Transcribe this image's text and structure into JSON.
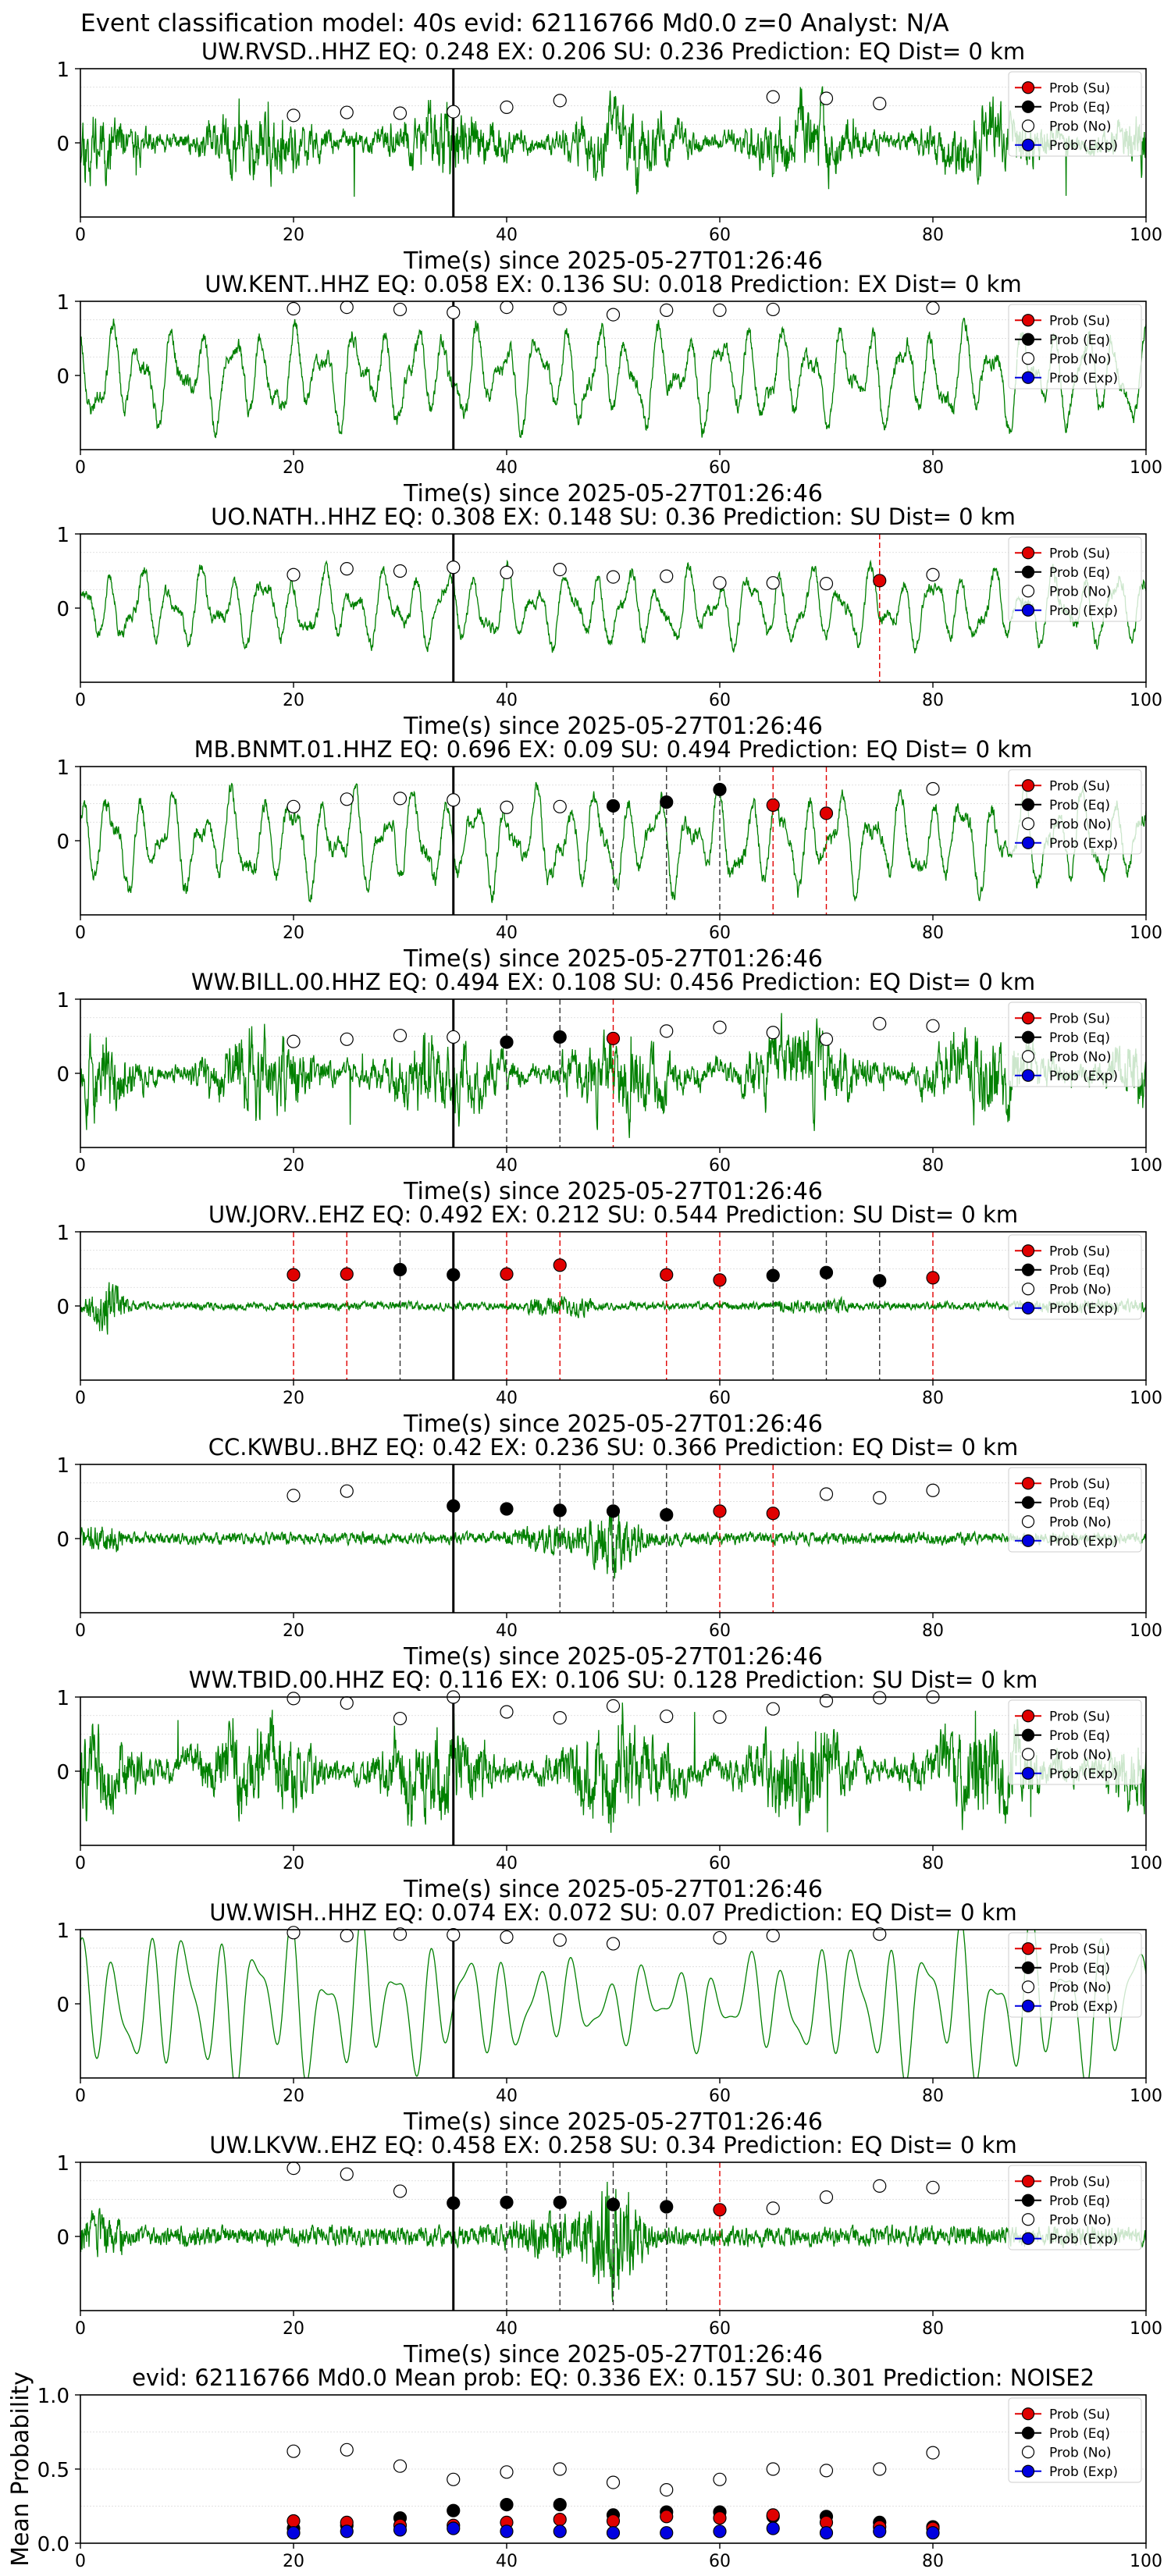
{
  "figure": {
    "suptitle": "Event classification model: 40s evid: 62116766 Md0.0 z=0 Analyst: N/A"
  },
  "legend": {
    "entries": [
      {
        "label": "Prob (Su)",
        "color": "#e00000"
      },
      {
        "label": "Prob (Eq)",
        "color": "#000000"
      },
      {
        "label": "Prob (No)",
        "color": "#ffffff"
      },
      {
        "label": "Prob (Exp)",
        "color": "#0000e0"
      }
    ]
  },
  "colors": {
    "waveform": "#008000",
    "su": "#e00000",
    "eq": "#000000",
    "no": "#ffffff",
    "exp": "#0000e0"
  },
  "chart_data": [
    {
      "type": "line",
      "title": "UW.RVSD..HHZ   EQ: 0.248  EX: 0.206  SU: 0.236   Prediction: EQ    Dist= 0 km",
      "xlabel": "Time(s) since 2025-05-27T01:26:46",
      "xlim": [
        0,
        100
      ],
      "xticks": [
        0,
        20,
        40,
        60,
        80,
        100
      ],
      "yticks": [
        0,
        1
      ],
      "ylim": [
        -1,
        1
      ],
      "event_line": 35,
      "waveform": {
        "style": "noisy",
        "amplitude": 0.4,
        "seed": 11
      },
      "prob_no": [
        [
          20,
          0.37
        ],
        [
          25,
          0.41
        ],
        [
          30,
          0.4
        ],
        [
          35,
          0.42
        ],
        [
          40,
          0.48
        ],
        [
          45,
          0.57
        ],
        [
          65,
          0.62
        ],
        [
          70,
          0.6
        ],
        [
          75,
          0.53
        ]
      ],
      "prob_eq": [],
      "prob_su": [],
      "lines_eq": [],
      "lines_su": []
    },
    {
      "type": "line",
      "title": "UW.KENT..HHZ   EQ: 0.058  EX: 0.136  SU: 0.018   Prediction: EX    Dist= 0 km",
      "xlabel": "Time(s) since 2025-05-27T01:26:46",
      "xlim": [
        0,
        100
      ],
      "xticks": [
        0,
        20,
        40,
        60,
        80,
        100
      ],
      "yticks": [
        0,
        1
      ],
      "ylim": [
        -1,
        1
      ],
      "event_line": 35,
      "waveform": {
        "style": "wavy",
        "amplitude": 0.45,
        "seed": 23
      },
      "prob_no": [
        [
          20,
          0.9
        ],
        [
          25,
          0.92
        ],
        [
          30,
          0.89
        ],
        [
          35,
          0.85
        ],
        [
          40,
          0.92
        ],
        [
          45,
          0.9
        ],
        [
          50,
          0.82
        ],
        [
          55,
          0.88
        ],
        [
          60,
          0.88
        ],
        [
          65,
          0.89
        ],
        [
          80,
          0.91
        ]
      ],
      "prob_eq": [],
      "prob_su": [],
      "lines_eq": [],
      "lines_su": []
    },
    {
      "type": "line",
      "title": "UO.NATH..HHZ   EQ: 0.308  EX: 0.148  SU: 0.36   Prediction: SU    Dist= 0 km",
      "xlabel": "Time(s) since 2025-05-27T01:26:46",
      "xlim": [
        0,
        100
      ],
      "xticks": [
        0,
        20,
        40,
        60,
        80,
        100
      ],
      "yticks": [
        0,
        1
      ],
      "ylim": [
        -1,
        1
      ],
      "event_line": 35,
      "waveform": {
        "style": "wavy",
        "amplitude": 0.35,
        "seed": 37
      },
      "prob_no": [
        [
          20,
          0.45
        ],
        [
          25,
          0.53
        ],
        [
          30,
          0.5
        ],
        [
          35,
          0.55
        ],
        [
          40,
          0.48
        ],
        [
          45,
          0.52
        ],
        [
          50,
          0.42
        ],
        [
          55,
          0.43
        ],
        [
          60,
          0.34
        ],
        [
          65,
          0.34
        ],
        [
          70,
          0.33
        ],
        [
          80,
          0.45
        ]
      ],
      "prob_eq": [],
      "prob_su": [
        [
          75,
          0.37
        ]
      ],
      "lines_eq": [],
      "lines_su": [
        75
      ]
    },
    {
      "type": "line",
      "title": "MB.BNMT.01.HHZ   EQ: 0.696  EX: 0.09  SU: 0.494   Prediction: EQ    Dist= 0 km",
      "xlabel": "Time(s) since 2025-05-27T01:26:46",
      "xlim": [
        0,
        100
      ],
      "xticks": [
        0,
        20,
        40,
        60,
        80,
        100
      ],
      "yticks": [
        0,
        1
      ],
      "ylim": [
        -1,
        1
      ],
      "event_line": 35,
      "waveform": {
        "style": "wavy",
        "amplitude": 0.45,
        "seed": 41
      },
      "prob_no": [
        [
          20,
          0.46
        ],
        [
          25,
          0.56
        ],
        [
          30,
          0.57
        ],
        [
          35,
          0.55
        ],
        [
          40,
          0.45
        ],
        [
          45,
          0.46
        ],
        [
          80,
          0.7
        ]
      ],
      "prob_eq": [
        [
          50,
          0.47
        ],
        [
          55,
          0.52
        ],
        [
          60,
          0.69
        ]
      ],
      "prob_su": [
        [
          65,
          0.48
        ],
        [
          70,
          0.37
        ]
      ],
      "lines_eq": [
        50,
        55,
        60
      ],
      "lines_su": [
        65,
        70
      ]
    },
    {
      "type": "line",
      "title": "WW.BILL.00.HHZ   EQ: 0.494  EX: 0.108  SU: 0.456   Prediction: EQ    Dist= 0 km",
      "xlabel": "Time(s) since 2025-05-27T01:26:46",
      "xlim": [
        0,
        100
      ],
      "xticks": [
        0,
        20,
        40,
        60,
        80,
        100
      ],
      "yticks": [
        0,
        1
      ],
      "ylim": [
        -1,
        1
      ],
      "event_line": 35,
      "waveform": {
        "style": "noisy",
        "amplitude": 0.45,
        "seed": 53
      },
      "prob_no": [
        [
          20,
          0.43
        ],
        [
          25,
          0.46
        ],
        [
          30,
          0.51
        ],
        [
          35,
          0.49
        ],
        [
          55,
          0.57
        ],
        [
          60,
          0.62
        ],
        [
          65,
          0.55
        ],
        [
          70,
          0.46
        ],
        [
          75,
          0.67
        ],
        [
          80,
          0.64
        ]
      ],
      "prob_eq": [
        [
          40,
          0.42
        ],
        [
          45,
          0.49
        ]
      ],
      "prob_su": [
        [
          50,
          0.47
        ]
      ],
      "lines_eq": [
        40,
        45
      ],
      "lines_su": [
        50
      ]
    },
    {
      "type": "line",
      "title": "UW.JORV..EHZ   EQ: 0.492  EX: 0.212  SU: 0.544   Prediction: SU    Dist= 0 km",
      "xlabel": "Time(s) since 2025-05-27T01:26:46",
      "xlim": [
        0,
        100
      ],
      "xticks": [
        0,
        20,
        40,
        60,
        80,
        100
      ],
      "yticks": [
        0,
        1
      ],
      "ylim": [
        -1,
        1
      ],
      "event_line": 35,
      "waveform": {
        "style": "quiet",
        "amplitude": 0.08,
        "seed": 67
      },
      "prob_no": [],
      "prob_eq": [
        [
          30,
          0.49
        ],
        [
          35,
          0.42
        ],
        [
          65,
          0.41
        ],
        [
          70,
          0.45
        ],
        [
          75,
          0.34
        ]
      ],
      "prob_su": [
        [
          20,
          0.42
        ],
        [
          25,
          0.43
        ],
        [
          40,
          0.43
        ],
        [
          45,
          0.55
        ],
        [
          55,
          0.42
        ],
        [
          60,
          0.35
        ],
        [
          80,
          0.38
        ]
      ],
      "lines_eq": [
        30,
        65,
        70,
        75
      ],
      "lines_su": [
        20,
        25,
        40,
        45,
        55,
        60,
        80
      ]
    },
    {
      "type": "line",
      "title": "CC.KWBU..BHZ   EQ: 0.42  EX: 0.236  SU: 0.366   Prediction: EQ    Dist= 0 km",
      "xlabel": "Time(s) since 2025-05-27T01:26:46",
      "xlim": [
        0,
        100
      ],
      "xticks": [
        0,
        20,
        40,
        60,
        80,
        100
      ],
      "yticks": [
        0,
        1
      ],
      "ylim": [
        -1,
        1
      ],
      "event_line": 35,
      "waveform": {
        "style": "burst",
        "amplitude": 0.12,
        "seed": 71
      },
      "prob_no": [
        [
          20,
          0.58
        ],
        [
          25,
          0.64
        ],
        [
          70,
          0.6
        ],
        [
          75,
          0.55
        ],
        [
          80,
          0.65
        ]
      ],
      "prob_eq": [
        [
          35,
          0.44
        ],
        [
          40,
          0.4
        ],
        [
          45,
          0.38
        ],
        [
          50,
          0.37
        ],
        [
          55,
          0.32
        ]
      ],
      "prob_su": [
        [
          60,
          0.37
        ],
        [
          65,
          0.34
        ]
      ],
      "lines_eq": [
        45,
        50,
        55
      ],
      "lines_su": [
        60,
        65
      ]
    },
    {
      "type": "line",
      "title": "WW.TBID.00.HHZ   EQ: 0.116  EX: 0.106  SU: 0.128   Prediction: SU    Dist= 0 km",
      "xlabel": "Time(s) since 2025-05-27T01:26:46",
      "xlim": [
        0,
        100
      ],
      "xticks": [
        0,
        20,
        40,
        60,
        80,
        100
      ],
      "yticks": [
        0,
        1
      ],
      "ylim": [
        -1,
        1
      ],
      "event_line": 35,
      "waveform": {
        "style": "noisy",
        "amplitude": 0.55,
        "seed": 83
      },
      "prob_no": [
        [
          20,
          0.98
        ],
        [
          25,
          0.92
        ],
        [
          30,
          0.71
        ],
        [
          35,
          1.0
        ],
        [
          40,
          0.8
        ],
        [
          45,
          0.72
        ],
        [
          50,
          0.88
        ],
        [
          55,
          0.74
        ],
        [
          60,
          0.73
        ],
        [
          65,
          0.84
        ],
        [
          70,
          0.95
        ],
        [
          75,
          0.99
        ],
        [
          80,
          1.0
        ]
      ],
      "prob_eq": [],
      "prob_su": [],
      "lines_eq": [],
      "lines_su": []
    },
    {
      "type": "line",
      "title": "UW.WISH..HHZ   EQ: 0.074  EX: 0.072  SU: 0.07   Prediction: EQ    Dist= 0 km",
      "xlabel": "Time(s) since 2025-05-27T01:26:46",
      "xlim": [
        0,
        100
      ],
      "xticks": [
        0,
        20,
        40,
        60,
        80,
        100
      ],
      "yticks": [
        0,
        1
      ],
      "ylim": [
        -1,
        1
      ],
      "event_line": 35,
      "waveform": {
        "style": "smooth",
        "amplitude": 0.6,
        "seed": 97
      },
      "prob_no": [
        [
          20,
          0.96
        ],
        [
          25,
          0.92
        ],
        [
          30,
          0.94
        ],
        [
          35,
          0.93
        ],
        [
          40,
          0.9
        ],
        [
          45,
          0.86
        ],
        [
          50,
          0.81
        ],
        [
          60,
          0.89
        ],
        [
          65,
          0.92
        ],
        [
          75,
          0.94
        ]
      ],
      "prob_eq": [],
      "prob_su": [],
      "lines_eq": [],
      "lines_su": []
    },
    {
      "type": "line",
      "title": "UW.LKVW..EHZ   EQ: 0.458  EX: 0.258  SU: 0.34   Prediction: EQ    Dist= 0 km",
      "xlabel": "Time(s) since 2025-05-27T01:26:46",
      "xlim": [
        0,
        100
      ],
      "xticks": [
        0,
        20,
        40,
        60,
        80,
        100
      ],
      "yticks": [
        0,
        1
      ],
      "ylim": [
        -1,
        1
      ],
      "event_line": 35,
      "waveform": {
        "style": "burst",
        "amplitude": 0.2,
        "seed": 103
      },
      "prob_no": [
        [
          20,
          0.92
        ],
        [
          25,
          0.84
        ],
        [
          30,
          0.61
        ],
        [
          65,
          0.38
        ],
        [
          70,
          0.53
        ],
        [
          75,
          0.68
        ],
        [
          80,
          0.66
        ]
      ],
      "prob_eq": [
        [
          35,
          0.45
        ],
        [
          40,
          0.46
        ],
        [
          45,
          0.46
        ],
        [
          50,
          0.43
        ],
        [
          55,
          0.4
        ]
      ],
      "prob_su": [
        [
          60,
          0.36
        ]
      ],
      "lines_eq": [
        40,
        45,
        50,
        55
      ],
      "lines_su": [
        60
      ]
    },
    {
      "type": "scatter",
      "title": "evid: 62116766  Md0.0   Mean prob:   EQ: 0.336  EX: 0.157  SU: 0.301   Prediction: NOISE2",
      "ylabel": "Mean Probability",
      "xlim": [
        0,
        100
      ],
      "xticks": [
        0,
        20,
        40,
        60,
        80,
        100
      ],
      "ylim": [
        0,
        1
      ],
      "yticks": [
        "0.0",
        "0.5",
        "1.0"
      ],
      "prob_no": [
        [
          20,
          0.62
        ],
        [
          25,
          0.63
        ],
        [
          30,
          0.52
        ],
        [
          35,
          0.43
        ],
        [
          40,
          0.48
        ],
        [
          45,
          0.5
        ],
        [
          50,
          0.41
        ],
        [
          55,
          0.36
        ],
        [
          60,
          0.43
        ],
        [
          65,
          0.5
        ],
        [
          70,
          0.49
        ],
        [
          75,
          0.5
        ],
        [
          80,
          0.61
        ]
      ],
      "prob_eq": [
        [
          20,
          0.1
        ],
        [
          25,
          0.12
        ],
        [
          30,
          0.17
        ],
        [
          35,
          0.22
        ],
        [
          40,
          0.26
        ],
        [
          45,
          0.26
        ],
        [
          50,
          0.19
        ],
        [
          55,
          0.21
        ],
        [
          60,
          0.21
        ],
        [
          65,
          0.18
        ],
        [
          70,
          0.18
        ],
        [
          75,
          0.14
        ],
        [
          80,
          0.11
        ]
      ],
      "prob_su": [
        [
          20,
          0.15
        ],
        [
          25,
          0.14
        ],
        [
          30,
          0.12
        ],
        [
          35,
          0.12
        ],
        [
          40,
          0.14
        ],
        [
          45,
          0.16
        ],
        [
          50,
          0.15
        ],
        [
          55,
          0.18
        ],
        [
          60,
          0.17
        ],
        [
          65,
          0.19
        ],
        [
          70,
          0.14
        ],
        [
          75,
          0.11
        ],
        [
          80,
          0.1
        ]
      ],
      "prob_exp": [
        [
          20,
          0.07
        ],
        [
          25,
          0.08
        ],
        [
          30,
          0.09
        ],
        [
          35,
          0.1
        ],
        [
          40,
          0.08
        ],
        [
          45,
          0.08
        ],
        [
          50,
          0.07
        ],
        [
          55,
          0.07
        ],
        [
          60,
          0.08
        ],
        [
          65,
          0.1
        ],
        [
          70,
          0.07
        ],
        [
          75,
          0.08
        ],
        [
          80,
          0.07
        ]
      ]
    }
  ]
}
